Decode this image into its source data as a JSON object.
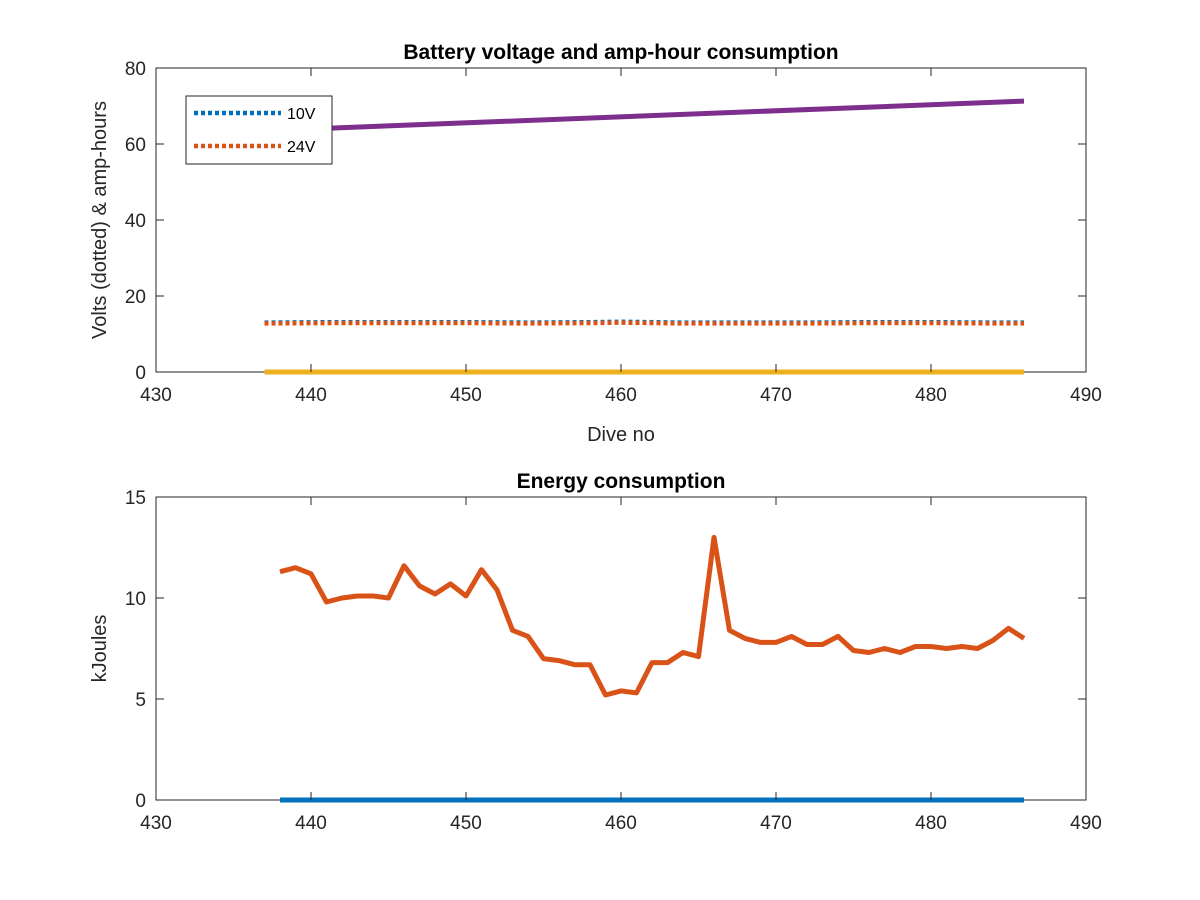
{
  "chart_data": [
    {
      "type": "line",
      "title": "Battery voltage and amp-hour consumption",
      "xlabel": "Dive no",
      "ylabel": "Volts (dotted) & amp-hours",
      "xlim": [
        430,
        490
      ],
      "ylim": [
        0,
        80
      ],
      "xticks": [
        430,
        440,
        450,
        460,
        470,
        480,
        490
      ],
      "yticks": [
        0,
        20,
        40,
        60,
        80
      ],
      "grid": false,
      "legend_position": "top-left",
      "series": [
        {
          "name": "10V",
          "style": "dotted",
          "color": "#0072BD",
          "x": [
            437,
            442,
            446,
            450,
            454,
            458,
            460,
            464,
            468,
            472,
            476,
            480,
            484,
            486
          ],
          "y": [
            13.0,
            13.1,
            13.1,
            13.1,
            13.0,
            13.1,
            13.2,
            13.0,
            13.0,
            13.0,
            13.1,
            13.1,
            13.0,
            13.0
          ]
        },
        {
          "name": "24V",
          "style": "dotted",
          "color": "#D95319",
          "x": [
            437,
            442,
            446,
            450,
            454,
            458,
            460,
            464,
            468,
            472,
            476,
            480,
            484,
            486
          ],
          "y": [
            12.8,
            12.9,
            12.9,
            12.9,
            12.8,
            12.9,
            13.0,
            12.8,
            12.8,
            12.8,
            12.9,
            12.9,
            12.8,
            12.8
          ]
        },
        {
          "style": "solid",
          "color": "#7E2F8E",
          "x": [
            437,
            486
          ],
          "y": [
            63.5,
            71.3
          ]
        },
        {
          "style": "solid",
          "color": "#EDB120",
          "x": [
            437,
            486
          ],
          "y": [
            0,
            0
          ]
        }
      ]
    },
    {
      "type": "line",
      "title": "Energy consumption",
      "xlabel": "",
      "ylabel": "kJoules",
      "xlim": [
        430,
        490
      ],
      "ylim": [
        0,
        15
      ],
      "xticks": [
        430,
        440,
        450,
        460,
        470,
        480,
        490
      ],
      "yticks": [
        0,
        5,
        10,
        15
      ],
      "grid": false,
      "series": [
        {
          "style": "solid",
          "color": "#0072BD",
          "x": [
            438,
            486
          ],
          "y": [
            0,
            0
          ]
        },
        {
          "style": "solid",
          "color": "#D95319",
          "x": [
            438,
            439,
            440,
            441,
            442,
            443,
            444,
            445,
            446,
            447,
            448,
            449,
            450,
            451,
            452,
            453,
            454,
            455,
            456,
            457,
            458,
            459,
            460,
            461,
            462,
            463,
            464,
            465,
            466,
            467,
            468,
            469,
            470,
            471,
            472,
            473,
            474,
            475,
            476,
            477,
            478,
            479,
            480,
            481,
            482,
            483,
            484,
            485,
            486
          ],
          "y": [
            11.3,
            11.5,
            11.2,
            9.8,
            10.0,
            10.1,
            10.1,
            10.0,
            11.6,
            10.6,
            10.2,
            10.7,
            10.1,
            11.4,
            10.4,
            8.4,
            8.1,
            7.0,
            6.9,
            6.7,
            6.7,
            5.2,
            5.4,
            5.3,
            6.8,
            6.8,
            7.3,
            7.1,
            13.0,
            8.4,
            8.0,
            7.8,
            7.8,
            8.1,
            7.7,
            7.7,
            8.1,
            7.4,
            7.3,
            7.5,
            7.3,
            7.6,
            7.6,
            7.5,
            7.6,
            7.5,
            7.9,
            8.5,
            8.0
          ]
        }
      ]
    }
  ]
}
